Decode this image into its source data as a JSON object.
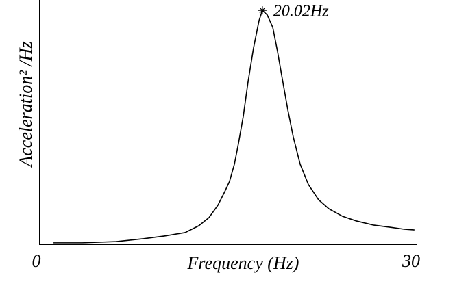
{
  "chart_data": {
    "type": "line",
    "x_label": "Frequency (Hz)",
    "y_label": "Acceleration² /Hz",
    "xlim": [
      0,
      30
    ],
    "xticks": [
      0,
      30
    ],
    "ylim": [
      0,
      1
    ],
    "color": "#000000",
    "grid": false,
    "annotations": [
      {
        "text": "20.02Hz"
      }
    ],
    "x": [
      1.1,
      3.4,
      6.14,
      8.33,
      9.98,
      11.63,
      12.72,
      13.55,
      14.26,
      14.81,
      15.19,
      15.58,
      15.9,
      16.29,
      16.67,
      17.11,
      17.55,
      17.82,
      18.21,
      18.65,
      19.03,
      19.41,
      19.85,
      20.29,
      20.84,
      21.5,
      22.32,
      23.15,
      24.24,
      25.34,
      26.71,
      28.08,
      29.17,
      29.99
    ],
    "values": [
      0.006,
      0.006,
      0.011,
      0.023,
      0.034,
      0.048,
      0.076,
      0.11,
      0.161,
      0.217,
      0.259,
      0.33,
      0.414,
      0.527,
      0.668,
      0.808,
      0.921,
      0.963,
      0.944,
      0.893,
      0.794,
      0.682,
      0.555,
      0.442,
      0.33,
      0.246,
      0.183,
      0.146,
      0.115,
      0.096,
      0.079,
      0.07,
      0.062,
      0.059
    ]
  }
}
